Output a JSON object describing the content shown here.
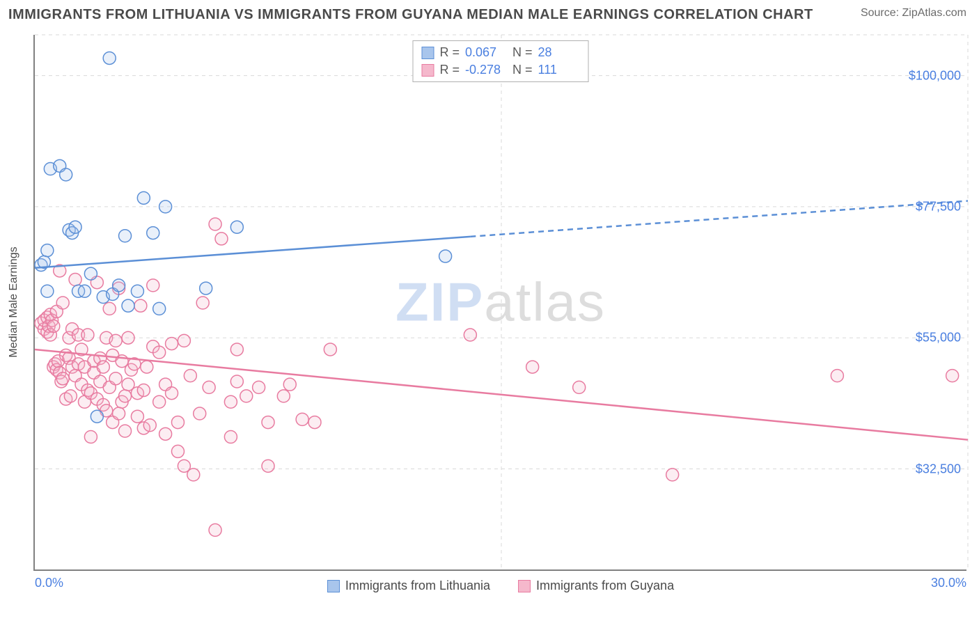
{
  "title": "IMMIGRANTS FROM LITHUANIA VS IMMIGRANTS FROM GUYANA MEDIAN MALE EARNINGS CORRELATION CHART",
  "source_label": "Source: ZipAtlas.com",
  "watermark": {
    "part1": "ZIP",
    "part2": "atlas"
  },
  "chart": {
    "type": "scatter",
    "xlim": [
      0,
      30
    ],
    "ylim": [
      15000,
      107000
    ],
    "x_label_min": "0.0%",
    "x_label_max": "30.0%",
    "y_label": "Median Male Earnings",
    "y_ticks": [
      {
        "v": 32500,
        "label": "$32,500"
      },
      {
        "v": 55000,
        "label": "$55,000"
      },
      {
        "v": 77500,
        "label": "$77,500"
      },
      {
        "v": 100000,
        "label": "$100,000"
      }
    ],
    "x_gridlines": [
      0,
      15,
      30
    ],
    "grid_color": "#d9d9d9",
    "background_color": "#ffffff",
    "axis_color": "#808080",
    "tick_text_color": "#4a7fe0",
    "marker_radius": 9,
    "marker_stroke_width": 1.5,
    "marker_fill_opacity": 0.25,
    "trend_line_width": 2.5
  },
  "series": {
    "lithuania": {
      "label": "Immigrants from Lithuania",
      "color_stroke": "#5b8fd6",
      "color_fill": "#a8c5ec",
      "r_value": "0.067",
      "n_value": "28",
      "trend": {
        "y_at_xmin": 67000,
        "y_at_xmax": 78500,
        "solid_until_x": 14
      },
      "points": [
        [
          0.2,
          67500
        ],
        [
          0.3,
          68000
        ],
        [
          0.4,
          70000
        ],
        [
          0.4,
          63000
        ],
        [
          0.5,
          84000
        ],
        [
          0.8,
          84500
        ],
        [
          1.0,
          83000
        ],
        [
          1.1,
          73500
        ],
        [
          1.2,
          73000
        ],
        [
          1.3,
          74000
        ],
        [
          1.4,
          63000
        ],
        [
          1.6,
          63000
        ],
        [
          1.8,
          66000
        ],
        [
          2.0,
          41500
        ],
        [
          2.2,
          62000
        ],
        [
          2.4,
          103000
        ],
        [
          2.5,
          62500
        ],
        [
          2.7,
          64000
        ],
        [
          2.9,
          72500
        ],
        [
          3.0,
          60500
        ],
        [
          3.3,
          63000
        ],
        [
          3.5,
          79000
        ],
        [
          3.8,
          73000
        ],
        [
          4.0,
          60000
        ],
        [
          4.2,
          77500
        ],
        [
          5.5,
          63500
        ],
        [
          6.5,
          74000
        ],
        [
          13.2,
          69000
        ]
      ]
    },
    "guyana": {
      "label": "Immigrants from Guyana",
      "color_stroke": "#e87ba0",
      "color_fill": "#f5b8cc",
      "r_value": "-0.278",
      "n_value": "111",
      "trend": {
        "y_at_xmin": 53000,
        "y_at_xmax": 37500,
        "solid_until_x": 30
      },
      "points": [
        [
          0.2,
          57500
        ],
        [
          0.3,
          56500
        ],
        [
          0.3,
          58000
        ],
        [
          0.4,
          58500
        ],
        [
          0.4,
          56000
        ],
        [
          0.45,
          57000
        ],
        [
          0.5,
          59000
        ],
        [
          0.5,
          55500
        ],
        [
          0.55,
          58000
        ],
        [
          0.6,
          57000
        ],
        [
          0.6,
          50000
        ],
        [
          0.65,
          50500
        ],
        [
          0.7,
          59500
        ],
        [
          0.7,
          49500
        ],
        [
          0.75,
          51000
        ],
        [
          0.8,
          66500
        ],
        [
          0.8,
          49000
        ],
        [
          0.85,
          47500
        ],
        [
          0.9,
          61000
        ],
        [
          0.9,
          48000
        ],
        [
          1.0,
          52000
        ],
        [
          1.0,
          44500
        ],
        [
          1.1,
          55000
        ],
        [
          1.1,
          51500
        ],
        [
          1.15,
          45000
        ],
        [
          1.2,
          50000
        ],
        [
          1.2,
          56500
        ],
        [
          1.3,
          48500
        ],
        [
          1.3,
          65000
        ],
        [
          1.4,
          50500
        ],
        [
          1.4,
          55500
        ],
        [
          1.5,
          47000
        ],
        [
          1.5,
          53000
        ],
        [
          1.6,
          44000
        ],
        [
          1.6,
          50000
        ],
        [
          1.7,
          46000
        ],
        [
          1.7,
          55500
        ],
        [
          1.8,
          45500
        ],
        [
          1.8,
          38000
        ],
        [
          1.9,
          51000
        ],
        [
          1.9,
          49000
        ],
        [
          2.0,
          64500
        ],
        [
          2.0,
          44500
        ],
        [
          2.1,
          47500
        ],
        [
          2.1,
          51500
        ],
        [
          2.2,
          50000
        ],
        [
          2.2,
          43500
        ],
        [
          2.3,
          55000
        ],
        [
          2.3,
          42500
        ],
        [
          2.4,
          46500
        ],
        [
          2.4,
          60000
        ],
        [
          2.5,
          40500
        ],
        [
          2.5,
          52000
        ],
        [
          2.6,
          54500
        ],
        [
          2.6,
          48000
        ],
        [
          2.7,
          42000
        ],
        [
          2.7,
          63500
        ],
        [
          2.8,
          44000
        ],
        [
          2.8,
          51000
        ],
        [
          2.9,
          45000
        ],
        [
          2.9,
          39000
        ],
        [
          3.0,
          55000
        ],
        [
          3.0,
          47000
        ],
        [
          3.1,
          49500
        ],
        [
          3.2,
          50500
        ],
        [
          3.3,
          45500
        ],
        [
          3.3,
          41500
        ],
        [
          3.4,
          60500
        ],
        [
          3.5,
          46000
        ],
        [
          3.5,
          39500
        ],
        [
          3.6,
          50000
        ],
        [
          3.7,
          40000
        ],
        [
          3.8,
          53500
        ],
        [
          3.8,
          64000
        ],
        [
          4.0,
          44000
        ],
        [
          4.0,
          52500
        ],
        [
          4.2,
          38500
        ],
        [
          4.2,
          47000
        ],
        [
          4.4,
          54000
        ],
        [
          4.4,
          45500
        ],
        [
          4.6,
          40500
        ],
        [
          4.6,
          35500
        ],
        [
          4.8,
          54500
        ],
        [
          4.8,
          33000
        ],
        [
          5.0,
          48500
        ],
        [
          5.1,
          31500
        ],
        [
          5.3,
          42000
        ],
        [
          5.4,
          61000
        ],
        [
          5.6,
          46500
        ],
        [
          5.8,
          74500
        ],
        [
          6.3,
          44000
        ],
        [
          6.3,
          38000
        ],
        [
          6.5,
          53000
        ],
        [
          6.5,
          47500
        ],
        [
          6.8,
          45000
        ],
        [
          7.2,
          46500
        ],
        [
          7.5,
          33000
        ],
        [
          7.5,
          40500
        ],
        [
          8.0,
          45000
        ],
        [
          8.2,
          47000
        ],
        [
          8.6,
          41000
        ],
        [
          9.0,
          40500
        ],
        [
          9.5,
          53000
        ],
        [
          5.8,
          22000
        ],
        [
          14.0,
          55500
        ],
        [
          16.0,
          50000
        ],
        [
          17.5,
          46500
        ],
        [
          20.5,
          31500
        ],
        [
          25.8,
          48500
        ],
        [
          29.5,
          48500
        ],
        [
          6.0,
          72000
        ]
      ]
    }
  }
}
